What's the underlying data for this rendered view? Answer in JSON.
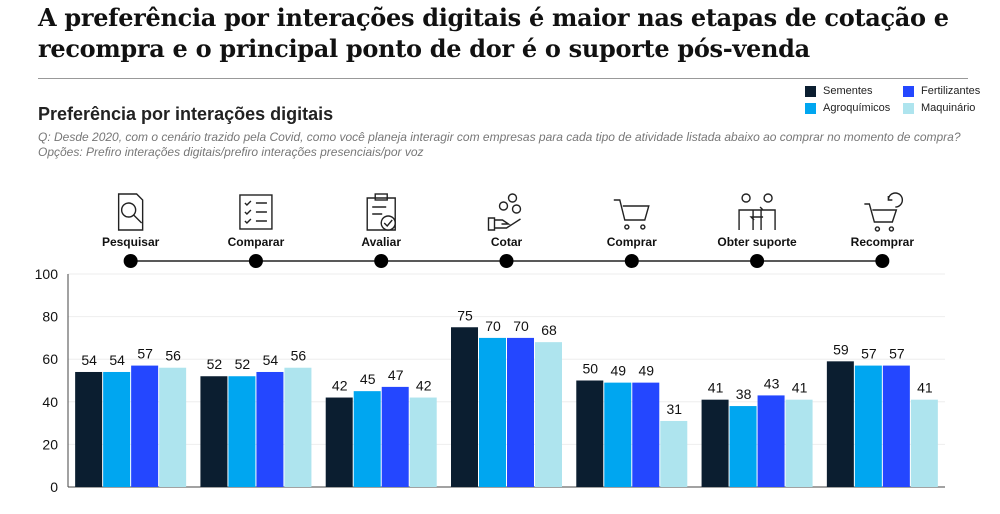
{
  "headline": "A preferência por interações digitais é maior nas etapas de cotação e recompra e o principal ponto de dor é o suporte pós-venda",
  "subtitle": "Preferência por interações digitais",
  "question": "Q: Desde 2020, com o cenário trazido pela Covid, como você planeja interagir com empresas para cada tipo de atividade listada abaixo ao comprar no momento de compra? Opções: Prefiro interações digitais/prefiro interações presenciais/por voz",
  "chart_data": {
    "type": "bar",
    "categories": [
      "Pesquisar",
      "Comparar",
      "Avaliar",
      "Cotar",
      "Comprar",
      "Obter suporte",
      "Recomprar"
    ],
    "category_icons": [
      "search-document-icon",
      "checklist-icon",
      "clipboard-check-icon",
      "hand-coins-icon",
      "cart-icon",
      "people-exchange-icon",
      "cart-refresh-icon"
    ],
    "series": [
      {
        "name": "Sementes",
        "color": "#0b1e30",
        "values": [
          54,
          52,
          42,
          75,
          50,
          41,
          59
        ]
      },
      {
        "name": "Agroquímicos",
        "color": "#00a6f0",
        "values": [
          54,
          52,
          45,
          70,
          49,
          38,
          57
        ]
      },
      {
        "name": "Fertilizantes",
        "color": "#2447ff",
        "values": [
          57,
          54,
          47,
          70,
          49,
          43,
          57
        ]
      },
      {
        "name": "Maquinário",
        "color": "#aee4ee",
        "values": [
          56,
          56,
          42,
          68,
          31,
          41,
          41
        ]
      }
    ],
    "legend_order": [
      "Sementes",
      "Fertilizantes",
      "Agroquímicos",
      "Maquinário"
    ],
    "ylim": [
      0,
      100
    ],
    "yticks": [
      0,
      20,
      40,
      60,
      80,
      100
    ],
    "grid": true,
    "legend_position": "top-right"
  }
}
